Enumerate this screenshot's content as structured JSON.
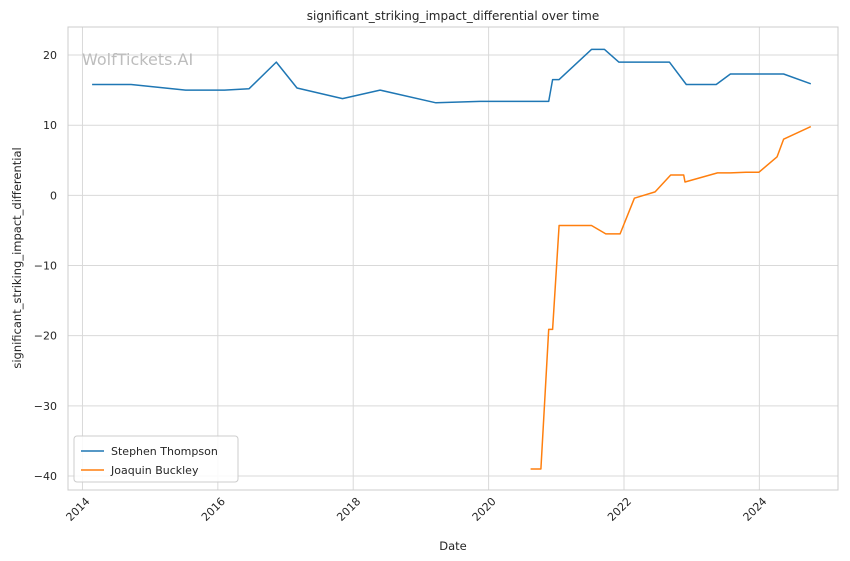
{
  "watermark": "WolfTickets.AI",
  "chart_data": {
    "type": "line",
    "title": "significant_striking_impact_differential over time",
    "xlabel": "Date",
    "ylabel": "significant_striking_impact_differential",
    "x_ticks": [
      "2014",
      "2016",
      "2018",
      "2020",
      "2022",
      "2024"
    ],
    "y_ticks": [
      20,
      10,
      0,
      -10,
      -20,
      -30,
      -40
    ],
    "xlim": [
      "2013-10-15",
      "2025-03-01"
    ],
    "ylim": [
      -42,
      24
    ],
    "grid": true,
    "legend_position": "lower-left",
    "series": [
      {
        "name": "Stephen Thompson",
        "color": "#1f77b4",
        "points": [
          [
            "2014-02-22",
            15.8
          ],
          [
            "2014-09-20",
            15.8
          ],
          [
            "2015-07-11",
            15.0
          ],
          [
            "2016-02-06",
            15.0
          ],
          [
            "2016-06-18",
            15.2
          ],
          [
            "2016-11-12",
            19.0
          ],
          [
            "2017-03-04",
            15.3
          ],
          [
            "2017-11-04",
            13.8
          ],
          [
            "2018-05-26",
            15.0
          ],
          [
            "2019-03-23",
            13.2
          ],
          [
            "2019-11-16",
            13.4
          ],
          [
            "2020-11-21",
            13.4
          ],
          [
            "2020-12-12",
            16.5
          ],
          [
            "2021-01-16",
            16.5
          ],
          [
            "2021-07-10",
            20.8
          ],
          [
            "2021-09-18",
            20.8
          ],
          [
            "2021-12-04",
            19.0
          ],
          [
            "2022-09-03",
            19.0
          ],
          [
            "2022-12-03",
            15.8
          ],
          [
            "2023-05-13",
            15.8
          ],
          [
            "2023-07-29",
            17.3
          ],
          [
            "2024-05-11",
            17.3
          ],
          [
            "2024-10-05",
            15.9
          ]
        ]
      },
      {
        "name": "Joaquin Buckley",
        "color": "#ff7f0e",
        "points": [
          [
            "2020-08-15",
            -39.0
          ],
          [
            "2020-10-10",
            -39.0
          ],
          [
            "2020-11-21",
            -19.1
          ],
          [
            "2020-12-12",
            -19.1
          ],
          [
            "2021-01-16",
            -4.3
          ],
          [
            "2021-07-10",
            -4.3
          ],
          [
            "2021-09-25",
            -5.5
          ],
          [
            "2021-12-11",
            -5.5
          ],
          [
            "2022-02-26",
            -0.4
          ],
          [
            "2022-06-18",
            0.5
          ],
          [
            "2022-09-10",
            2.9
          ],
          [
            "2022-11-19",
            2.9
          ],
          [
            "2022-11-26",
            1.9
          ],
          [
            "2023-05-20",
            3.2
          ],
          [
            "2023-07-29",
            3.2
          ],
          [
            "2023-10-21",
            3.3
          ],
          [
            "2023-12-30",
            3.3
          ],
          [
            "2024-04-06",
            5.5
          ],
          [
            "2024-05-11",
            8.0
          ],
          [
            "2024-10-05",
            9.8
          ]
        ]
      }
    ]
  }
}
